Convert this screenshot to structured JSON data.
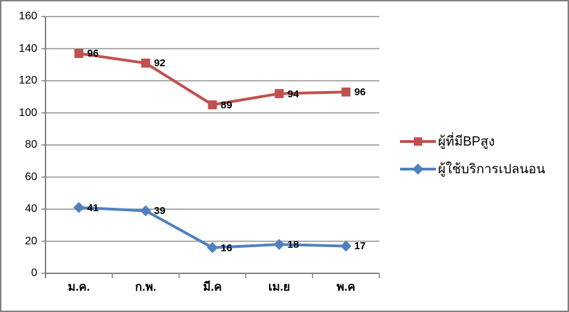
{
  "chart_data": {
    "type": "line",
    "title": "",
    "categories": [
      "ม.ค.",
      "ก.พ.",
      "มี.ค",
      "เม.ย",
      "พ.ค"
    ],
    "series": [
      {
        "name": "ผู้ที่มีBPสูง",
        "color": "#C0504D",
        "marker": "square",
        "values": [
          96,
          92,
          89,
          94,
          96
        ],
        "plotted_values": [
          137,
          131,
          105,
          112,
          113
        ]
      },
      {
        "name": "ผู้ใช้บริการเปลนอน",
        "color": "#4F81BD",
        "marker": "diamond",
        "values": [
          41,
          39,
          16,
          18,
          17
        ],
        "plotted_values": [
          41,
          39,
          16,
          18,
          17
        ]
      }
    ],
    "ylim": [
      0,
      160
    ],
    "yticks": [
      0,
      20,
      40,
      60,
      80,
      100,
      120,
      140,
      160
    ],
    "grid": "horizontal",
    "legend_position": "right",
    "data_labels": true
  },
  "colors": {
    "grid": "#909090",
    "axis": "#808080",
    "border": "#7F7F7F",
    "label": "#000000",
    "background": "#FFFFFF"
  }
}
